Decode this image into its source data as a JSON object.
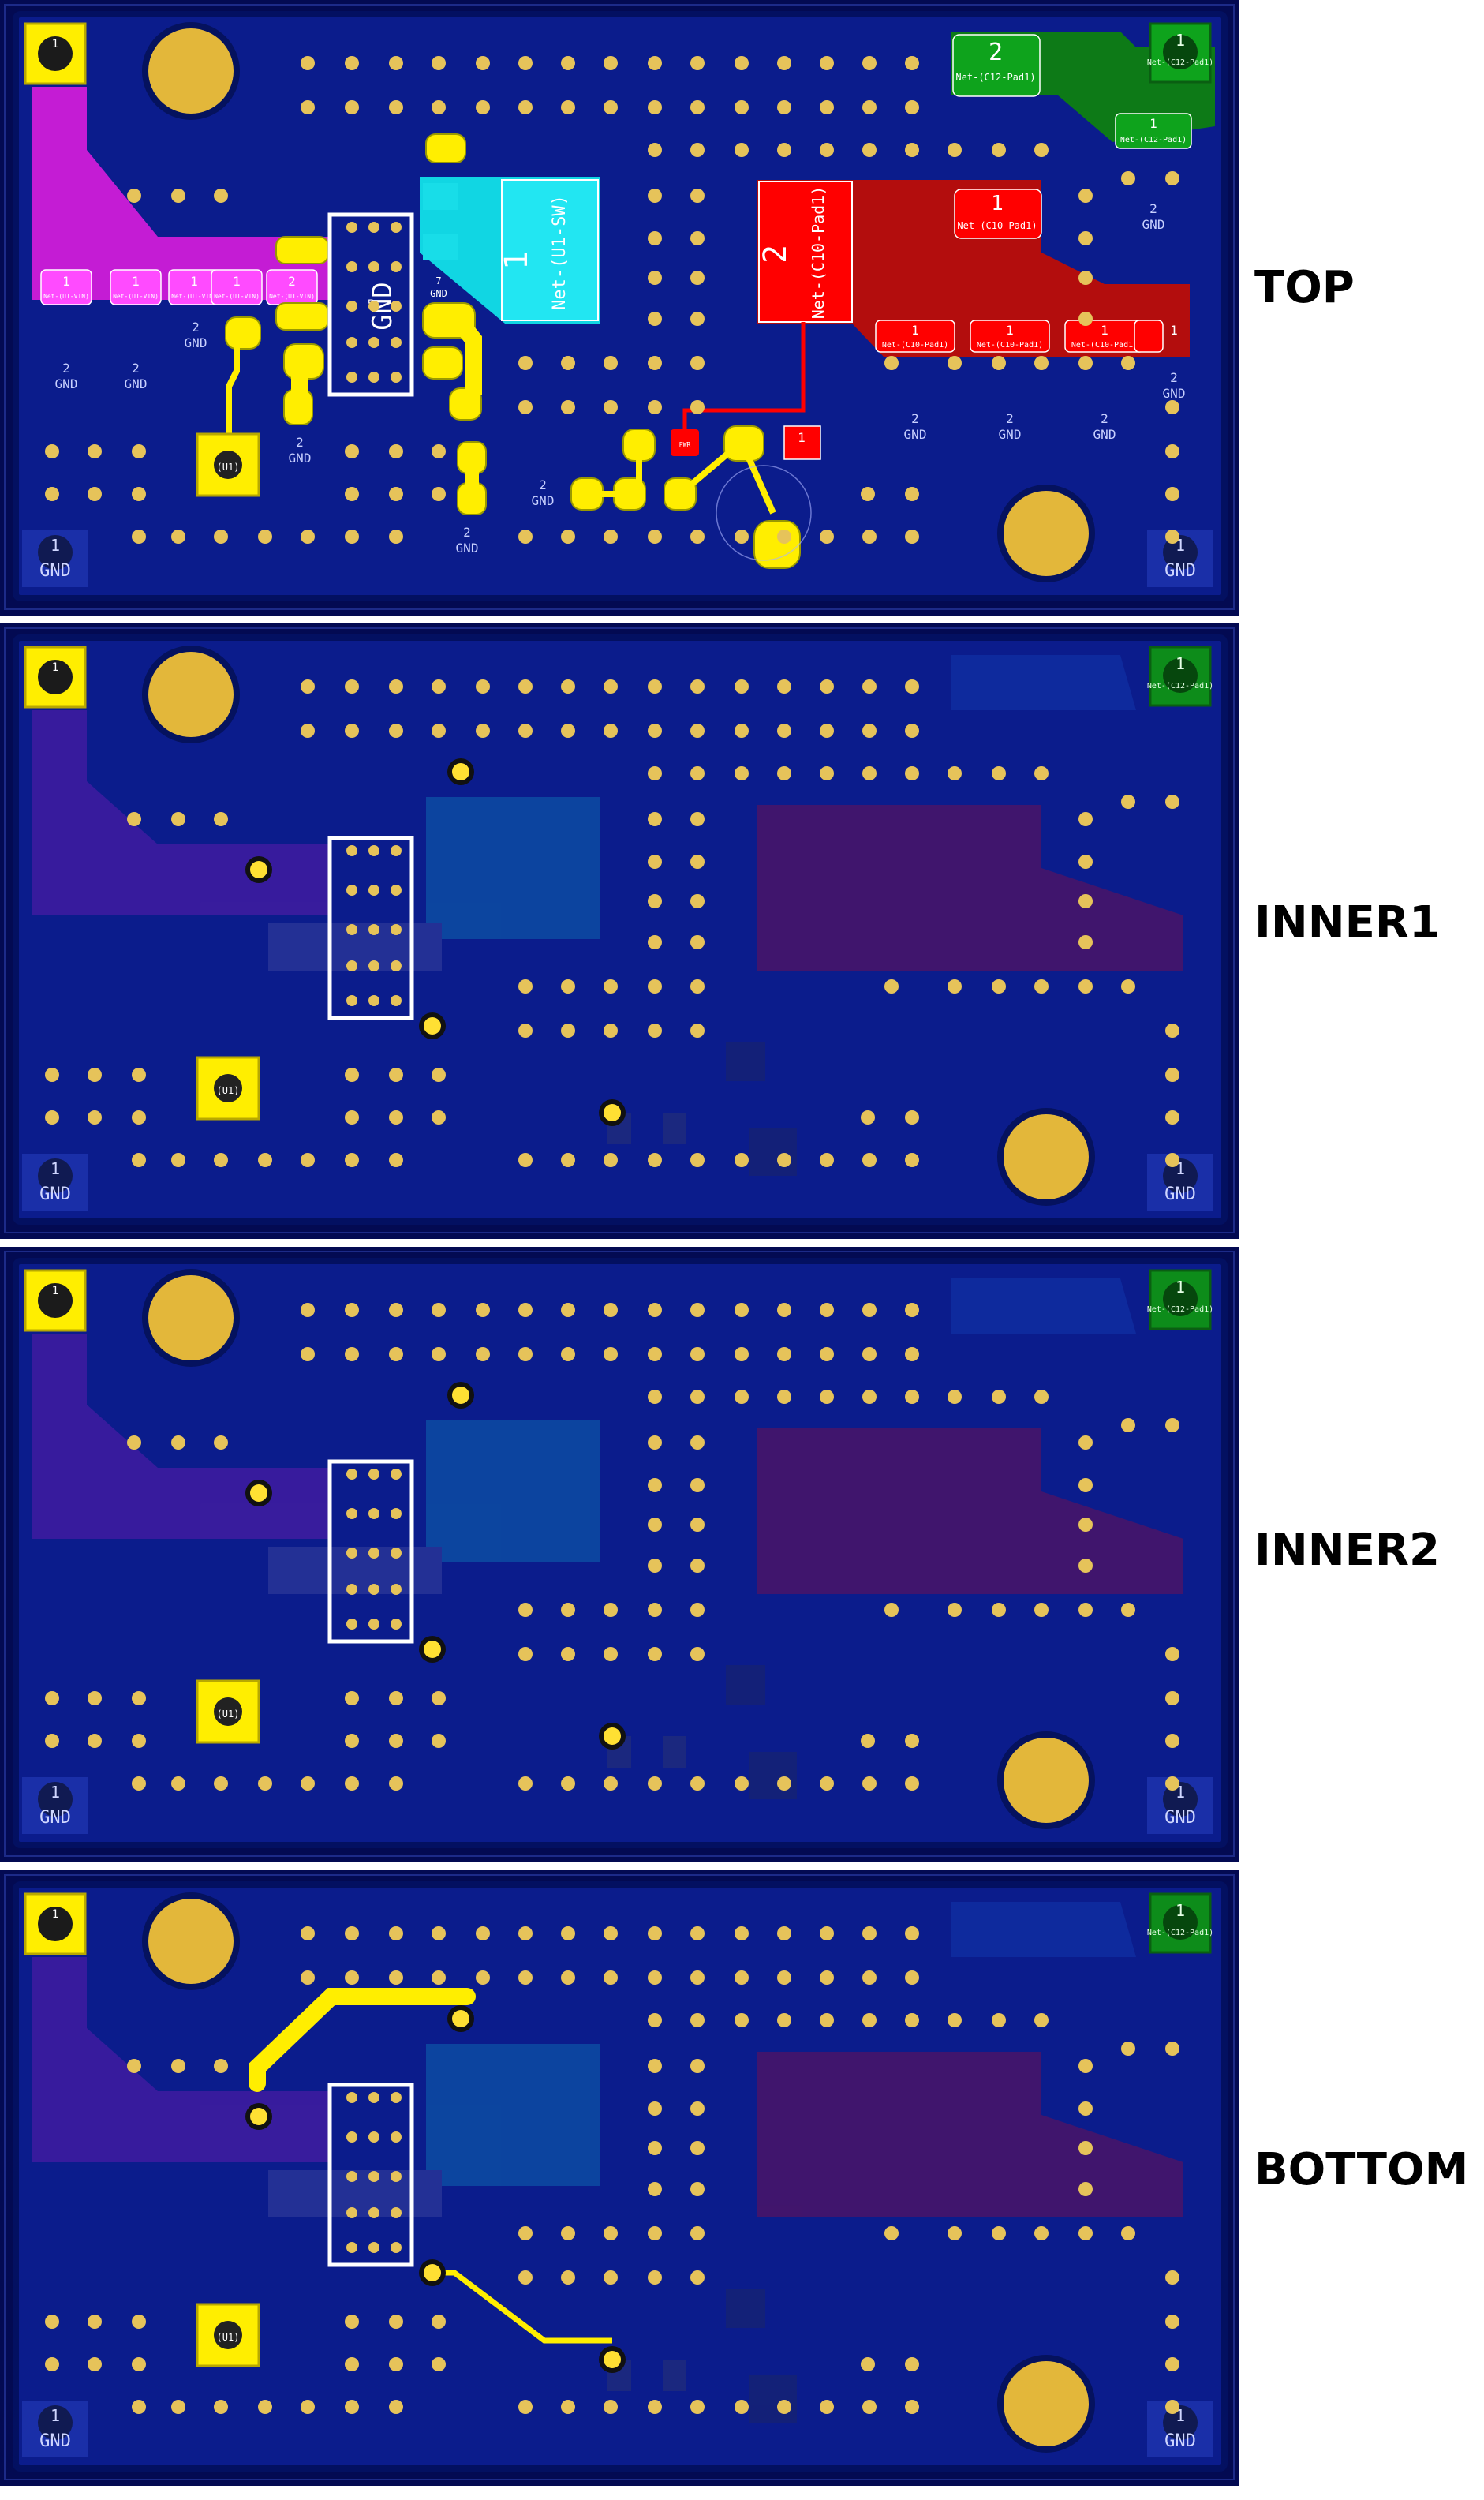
{
  "layers": [
    {
      "name": "TOP"
    },
    {
      "name": "INNER1"
    },
    {
      "name": "INNER2"
    },
    {
      "name": "BOTTOM"
    }
  ],
  "labels": {
    "gnd": "GND",
    "pad1": "1",
    "pad2": "2",
    "pad7": "7",
    "u1_sw": "Net-(U1-SW)",
    "c10_pad1": "Net-(C10-Pad1)",
    "c12_pad1": "Net-(C12-Pad1)",
    "u1_vin": "Net-(U1-VIN)",
    "j1": "Net-(J1-1)",
    "gnd_big": "GND",
    "u1_small": "(U1)",
    "pwr": "PWR_FLAG"
  },
  "colors": {
    "board_fill": "#0b1c8c",
    "board_edge": "#031061",
    "panel_bg": "#030a52",
    "pad_yellow": "#ffee00",
    "hole": "#e3b73a",
    "magenta": "#d81ddb",
    "cyan": "#11d6e3",
    "red": "#ff0000",
    "dark_red": "#b30d0d",
    "green": "#0ea31c",
    "dark_green": "#0d7a17",
    "via": "#f1d07a"
  }
}
